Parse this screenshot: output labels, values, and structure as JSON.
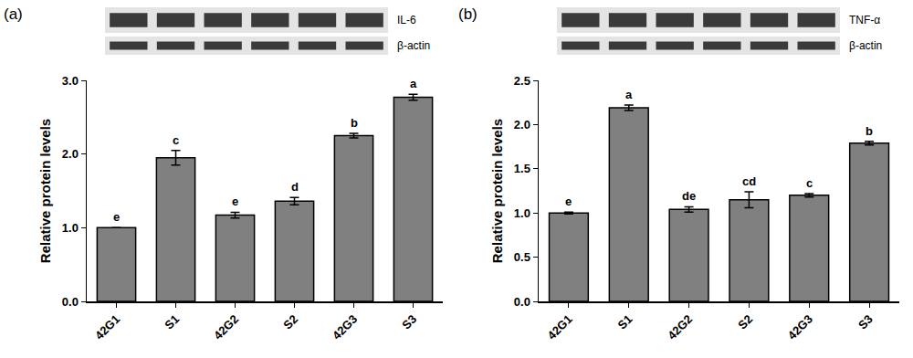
{
  "chart_data": [
    {
      "type": "bar",
      "title": "(a)",
      "blot_labels": [
        "IL-6",
        "β-actin"
      ],
      "y_label": "Relative protein levels",
      "categories": [
        "42G1",
        "S1",
        "42G2",
        "S2",
        "42G3",
        "S3"
      ],
      "values": [
        1.0,
        1.95,
        1.17,
        1.36,
        2.25,
        2.77
      ],
      "error": [
        0.0,
        0.1,
        0.04,
        0.05,
        0.03,
        0.04
      ],
      "letters": [
        "e",
        "c",
        "e",
        "d",
        "b",
        "a"
      ],
      "color": "#808080",
      "grid": false,
      "ylim": [
        0,
        3
      ],
      "yticks": [
        {
          "value": 0,
          "label": "0.0"
        },
        {
          "value": 1,
          "label": "1.0"
        },
        {
          "value": 2,
          "label": "2.0"
        },
        {
          "value": 3,
          "label": "3.0"
        }
      ]
    },
    {
      "type": "bar",
      "title": "(b)",
      "blot_labels": [
        "TNF-α",
        "β-actin"
      ],
      "y_label": "Relative protein levels",
      "categories": [
        "42G1",
        "S1",
        "42G2",
        "S2",
        "42G3",
        "S3"
      ],
      "values": [
        1.0,
        2.19,
        1.04,
        1.15,
        1.2,
        1.79
      ],
      "error": [
        0.01,
        0.03,
        0.03,
        0.09,
        0.02,
        0.02
      ],
      "letters": [
        "e",
        "a",
        "de",
        "cd",
        "c",
        "b"
      ],
      "color": "#808080",
      "grid": false,
      "ylim": [
        0,
        2.5
      ],
      "yticks": [
        {
          "value": 0,
          "label": "0.0"
        },
        {
          "value": 0.5,
          "label": "0.5"
        },
        {
          "value": 1,
          "label": "1.0"
        },
        {
          "value": 1.5,
          "label": "1.5"
        },
        {
          "value": 2,
          "label": "2.0"
        },
        {
          "value": 2.5,
          "label": "2.5"
        }
      ]
    }
  ]
}
